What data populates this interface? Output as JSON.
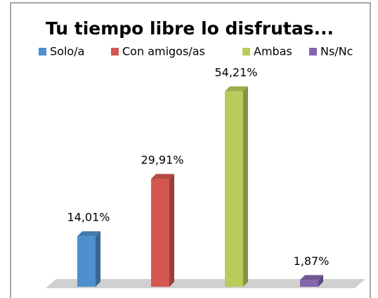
{
  "chart_data": {
    "type": "bar",
    "title": "Tu tiempo libre lo disfrutas...",
    "series": [
      {
        "name": "Solo/a",
        "color": "#4f8fcf",
        "values": [
          14.01
        ],
        "value_labels": [
          "14,01%"
        ]
      },
      {
        "name": "Con amigos/as",
        "color": "#d4574f",
        "values": [
          29.91
        ],
        "value_labels": [
          "29,91%"
        ]
      },
      {
        "name": "Ambas",
        "color": "#b8cc5a",
        "values": [
          54.21
        ],
        "value_labels": [
          "54,21%"
        ]
      },
      {
        "name": "Ns/Nc",
        "color": "#8466ad",
        "values": [
          1.87
        ],
        "value_labels": [
          "1,87%"
        ]
      }
    ]
  }
}
